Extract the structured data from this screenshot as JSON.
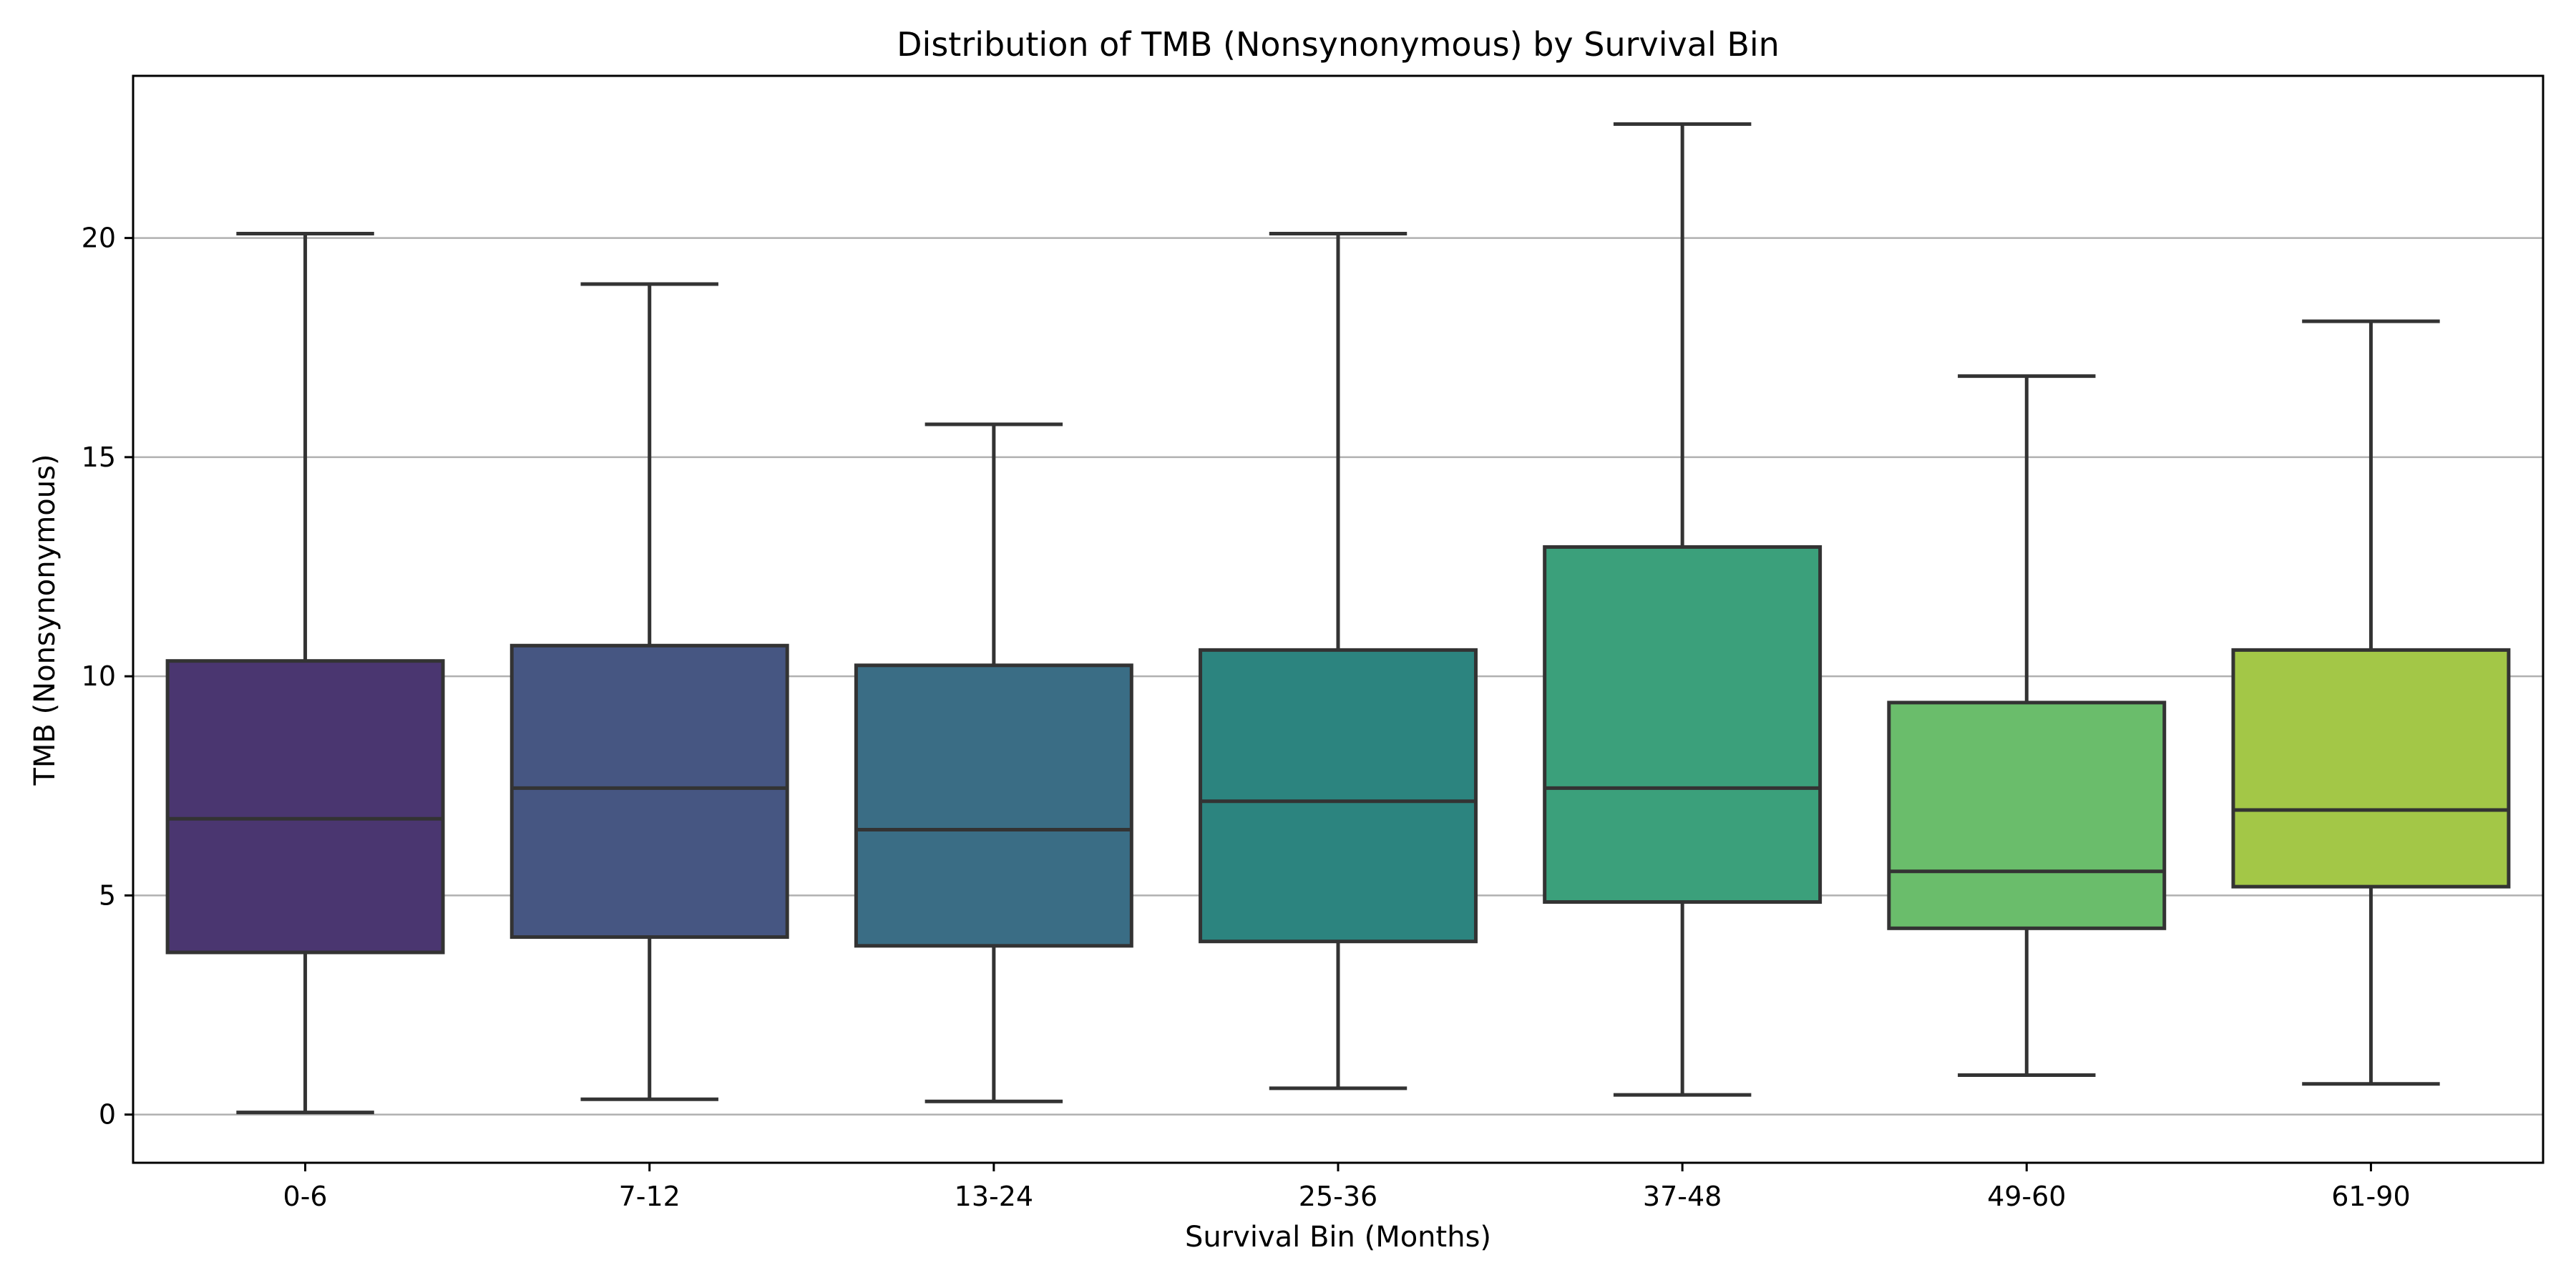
{
  "chart_data": {
    "type": "box",
    "title": "Distribution of TMB (Nonsynonymous) by Survival Bin",
    "xlabel": "Survival Bin (Months)",
    "ylabel": "TMB (Nonsynonymous)",
    "ylim": [
      -1.1,
      23.7
    ],
    "yticks": [
      0,
      5,
      10,
      15,
      20
    ],
    "grid": "y",
    "categories": [
      "0-6",
      "7-12",
      "13-24",
      "25-36",
      "37-48",
      "49-60",
      "61-90"
    ],
    "boxes": [
      {
        "label": "0-6",
        "whisker_low": 0.05,
        "q1": 3.7,
        "median": 6.75,
        "q3": 10.35,
        "whisker_high": 20.1,
        "color": "#4a3670"
      },
      {
        "label": "7-12",
        "whisker_low": 0.35,
        "q1": 4.05,
        "median": 7.45,
        "q3": 10.7,
        "whisker_high": 18.95,
        "color": "#465682"
      },
      {
        "label": "13-24",
        "whisker_low": 0.3,
        "q1": 3.85,
        "median": 6.5,
        "q3": 10.25,
        "whisker_high": 15.75,
        "color": "#3a6d85"
      },
      {
        "label": "25-36",
        "whisker_low": 0.6,
        "q1": 3.95,
        "median": 7.15,
        "q3": 10.6,
        "whisker_high": 20.1,
        "color": "#2c847f"
      },
      {
        "label": "37-48",
        "whisker_low": 0.45,
        "q1": 4.85,
        "median": 7.45,
        "q3": 12.95,
        "whisker_high": 22.6,
        "color": "#3ba07b"
      },
      {
        "label": "49-60",
        "whisker_low": 0.9,
        "q1": 4.25,
        "median": 5.55,
        "q3": 9.4,
        "whisker_high": 16.85,
        "color": "#6abd6b"
      },
      {
        "label": "61-90",
        "whisker_low": 0.7,
        "q1": 5.2,
        "median": 6.95,
        "q3": 10.6,
        "whisker_high": 18.1,
        "color": "#a3c747"
      }
    ]
  }
}
